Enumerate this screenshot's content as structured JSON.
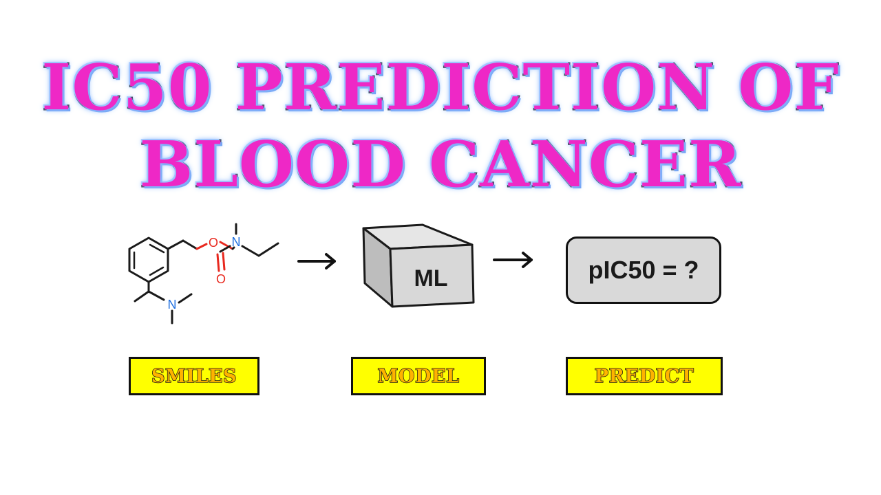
{
  "title": {
    "line1": "IC50 PREDICTION OF",
    "line2": "BLOOD CANCER"
  },
  "molecule": {
    "atoms": {
      "oxygen": "O",
      "nitrogen": "N"
    },
    "colors": {
      "oxygen": "#e8281e",
      "nitrogen": "#1f6fe0",
      "bond": "#1a1a1a"
    }
  },
  "model": {
    "cube_label": "ML"
  },
  "prediction": {
    "text": "pIC50 = ?"
  },
  "labels": {
    "smiles": "SMILES",
    "model": "MODEL",
    "predict": "PREDICT"
  },
  "colors": {
    "title_fill": "#ee28c6",
    "title_glow": "#8ab8ff",
    "label_bg": "#ffff00",
    "label_text": "#ffb300",
    "prediction_bg": "#d9d9d9"
  }
}
